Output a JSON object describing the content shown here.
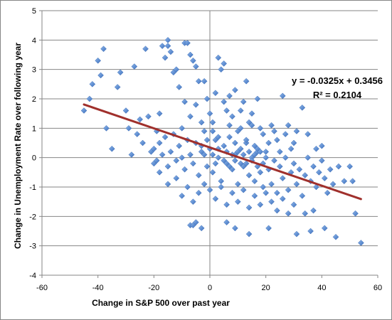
{
  "chart_data": {
    "type": "scatter",
    "title": "",
    "xlabel": "Change in S&P 500 over past year",
    "ylabel": "Change in Unemployment Rate over following year",
    "xlim": [
      -60,
      60
    ],
    "ylim": [
      -4,
      5
    ],
    "xticks": [
      -60,
      -40,
      -20,
      0,
      20,
      40,
      60
    ],
    "yticks": [
      -4,
      -3,
      -2,
      -1,
      0,
      1,
      2,
      3,
      4,
      5
    ],
    "grid": "horizontal",
    "legend": "none",
    "marker_color": "#4a7fc9",
    "trendline": {
      "slope": -0.0325,
      "intercept": 0.3456,
      "x_range": [
        -45,
        54
      ],
      "color": "#a0302c"
    },
    "annotations": {
      "equation": "y = -0.0325x + 0.3456",
      "r_squared": "R² = 0.2104"
    },
    "series": [
      {
        "points": [
          [
            -45,
            1.6
          ],
          [
            -43,
            2.0
          ],
          [
            -42,
            2.5
          ],
          [
            -40,
            3.3
          ],
          [
            -39,
            2.8
          ],
          [
            -38,
            3.7
          ],
          [
            -37,
            1.0
          ],
          [
            -35,
            0.3
          ],
          [
            -33,
            2.4
          ],
          [
            -32,
            2.9
          ],
          [
            -30,
            1.6
          ],
          [
            -29,
            1.0
          ],
          [
            -28,
            0.1
          ],
          [
            -27,
            3.1
          ],
          [
            -26,
            0.8
          ],
          [
            -25,
            1.3
          ],
          [
            -24,
            0.5
          ],
          [
            -23,
            3.7
          ],
          [
            -22,
            1.4
          ],
          [
            -21,
            0.2
          ],
          [
            -20,
            -0.2
          ],
          [
            -19,
            0.9
          ],
          [
            -18,
            1.5
          ],
          [
            -17,
            3.8
          ],
          [
            -16,
            3.4
          ],
          [
            -15,
            4.0
          ],
          [
            -15,
            3.8
          ],
          [
            -14,
            3.6
          ],
          [
            -13,
            2.9
          ],
          [
            -12,
            3.0
          ],
          [
            -11,
            2.4
          ],
          [
            -10,
            1.0
          ],
          [
            -9,
            3.9
          ],
          [
            -8,
            3.9
          ],
          [
            -7,
            3.5
          ],
          [
            -6,
            3.3
          ],
          [
            -5,
            3.1
          ],
          [
            -4,
            2.6
          ],
          [
            -3,
            1.2
          ],
          [
            -2,
            2.6
          ],
          [
            -1,
            2.0
          ],
          [
            0,
            1.5
          ],
          [
            1,
            0.9
          ],
          [
            2,
            2.2
          ],
          [
            3,
            3.4
          ],
          [
            4,
            3.0
          ],
          [
            5,
            3.2
          ],
          [
            6,
            1.6
          ],
          [
            7,
            2.1
          ],
          [
            8,
            1.4
          ],
          [
            9,
            2.3
          ],
          [
            10,
            0.9
          ],
          [
            11,
            1.0
          ],
          [
            12,
            1.9
          ],
          [
            13,
            2.6
          ],
          [
            14,
            1.2
          ],
          [
            15,
            1.5
          ],
          [
            16,
            0.4
          ],
          [
            17,
            2.0
          ],
          [
            18,
            1.0
          ],
          [
            20,
            0.2
          ],
          [
            22,
            1.1
          ],
          [
            24,
            0.6
          ],
          [
            26,
            2.1
          ],
          [
            28,
            1.1
          ],
          [
            30,
            0.5
          ],
          [
            33,
            1.7
          ],
          [
            35,
            0.8
          ],
          [
            38,
            0.3
          ],
          [
            40,
            0.4
          ],
          [
            -20,
            0.3
          ],
          [
            -19,
            -0.1
          ],
          [
            -18,
            0.5
          ],
          [
            -17,
            0.1
          ],
          [
            -16,
            0.7
          ],
          [
            -15,
            -0.3
          ],
          [
            -14,
            0.2
          ],
          [
            -13,
            0.8
          ],
          [
            -12,
            -0.1
          ],
          [
            -11,
            0.4
          ],
          [
            -10,
            0.0
          ],
          [
            -9,
            -0.4
          ],
          [
            -8,
            0.6
          ],
          [
            -7,
            0.1
          ],
          [
            -6,
            -0.2
          ],
          [
            -5,
            0.5
          ],
          [
            -4,
            -0.6
          ],
          [
            -3,
            0.2
          ],
          [
            -2,
            0.9
          ],
          [
            -1,
            -0.3
          ],
          [
            0,
            0.3
          ],
          [
            1,
            -0.5
          ],
          [
            2,
            0.6
          ],
          [
            3,
            0.0
          ],
          [
            4,
            -0.8
          ],
          [
            5,
            0.4
          ],
          [
            6,
            -0.2
          ],
          [
            7,
            0.7
          ],
          [
            8,
            -0.4
          ],
          [
            9,
            0.1
          ],
          [
            10,
            -0.9
          ],
          [
            11,
            0.3
          ],
          [
            12,
            -0.3
          ],
          [
            13,
            0.5
          ],
          [
            14,
            -0.6
          ],
          [
            15,
            0.0
          ],
          [
            16,
            -0.8
          ],
          [
            17,
            0.2
          ],
          [
            18,
            -0.5
          ],
          [
            19,
            -1.0
          ],
          [
            20,
            0.0
          ],
          [
            21,
            -0.4
          ],
          [
            22,
            -0.9
          ],
          [
            23,
            -0.1
          ],
          [
            24,
            -1.2
          ],
          [
            25,
            -0.3
          ],
          [
            26,
            -0.7
          ],
          [
            27,
            0.0
          ],
          [
            28,
            -1.1
          ],
          [
            29,
            -0.5
          ],
          [
            30,
            -0.2
          ],
          [
            31,
            -0.9
          ],
          [
            32,
            -0.4
          ],
          [
            33,
            -1.3
          ],
          [
            34,
            -0.6
          ],
          [
            35,
            0.0
          ],
          [
            36,
            -0.8
          ],
          [
            37,
            -0.3
          ],
          [
            38,
            -1.0
          ],
          [
            39,
            -0.5
          ],
          [
            40,
            -0.1
          ],
          [
            41,
            -0.7
          ],
          [
            42,
            -1.2
          ],
          [
            43,
            -0.4
          ],
          [
            44,
            -0.9
          ],
          [
            46,
            -0.3
          ],
          [
            48,
            -0.8
          ],
          [
            50,
            -0.3
          ],
          [
            51,
            -0.8
          ],
          [
            -18,
            -0.5
          ],
          [
            -15,
            -0.9
          ],
          [
            -12,
            -0.7
          ],
          [
            -10,
            -1.3
          ],
          [
            -8,
            -1.0
          ],
          [
            -6,
            -1.5
          ],
          [
            -4,
            -1.2
          ],
          [
            -2,
            -0.9
          ],
          [
            0,
            -1.1
          ],
          [
            2,
            -1.4
          ],
          [
            4,
            -1.0
          ],
          [
            6,
            -1.6
          ],
          [
            8,
            -1.2
          ],
          [
            10,
            -1.5
          ],
          [
            12,
            -1.1
          ],
          [
            14,
            -1.7
          ],
          [
            16,
            -1.3
          ],
          [
            18,
            -1.6
          ],
          [
            20,
            -1.2
          ],
          [
            22,
            -1.5
          ],
          [
            24,
            -1.8
          ],
          [
            26,
            -1.4
          ],
          [
            28,
            -1.9
          ],
          [
            30,
            -1.6
          ],
          [
            34,
            -1.9
          ],
          [
            37,
            -1.8
          ],
          [
            -7,
            -2.3
          ],
          [
            -6,
            -2.3
          ],
          [
            -5,
            -2.2
          ],
          [
            -3,
            -2.4
          ],
          [
            6,
            -2.2
          ],
          [
            9,
            -2.4
          ],
          [
            14,
            -2.6
          ],
          [
            21,
            -2.4
          ],
          [
            31,
            -2.6
          ],
          [
            36,
            -2.5
          ],
          [
            41,
            -2.4
          ],
          [
            45,
            -2.7
          ],
          [
            52,
            -1.9
          ],
          [
            54,
            -2.9
          ],
          [
            -9,
            1.9
          ],
          [
            -7,
            1.4
          ],
          [
            -5,
            1.8
          ],
          [
            -3,
            0.4
          ],
          [
            1,
            1.2
          ],
          [
            3,
            0.7
          ],
          [
            5,
            1.9
          ],
          [
            7,
            1.1
          ],
          [
            9,
            0.5
          ],
          [
            11,
            1.6
          ],
          [
            13,
            0.6
          ],
          [
            15,
            1.1
          ],
          [
            17,
            0.3
          ],
          [
            19,
            0.8
          ],
          [
            21,
            0.5
          ],
          [
            23,
            0.9
          ],
          [
            25,
            0.2
          ],
          [
            27,
            0.8
          ],
          [
            29,
            0.3
          ],
          [
            31,
            0.9
          ],
          [
            -2,
            0.1
          ],
          [
            -1,
            0.6
          ],
          [
            1,
            0.1
          ],
          [
            2,
            -0.2
          ],
          [
            3,
            0.3
          ],
          [
            5,
            -0.1
          ],
          [
            6,
            0.2
          ],
          [
            7,
            -0.3
          ],
          [
            8,
            0.1
          ],
          [
            9,
            -0.1
          ],
          [
            10,
            0.2
          ],
          [
            11,
            -0.2
          ],
          [
            12,
            0.1
          ],
          [
            13,
            -0.2
          ],
          [
            14,
            0.2
          ],
          [
            15,
            -0.1
          ],
          [
            16,
            0.1
          ],
          [
            17,
            -0.3
          ],
          [
            18,
            0.2
          ],
          [
            19,
            -0.2
          ]
        ]
      }
    ]
  }
}
